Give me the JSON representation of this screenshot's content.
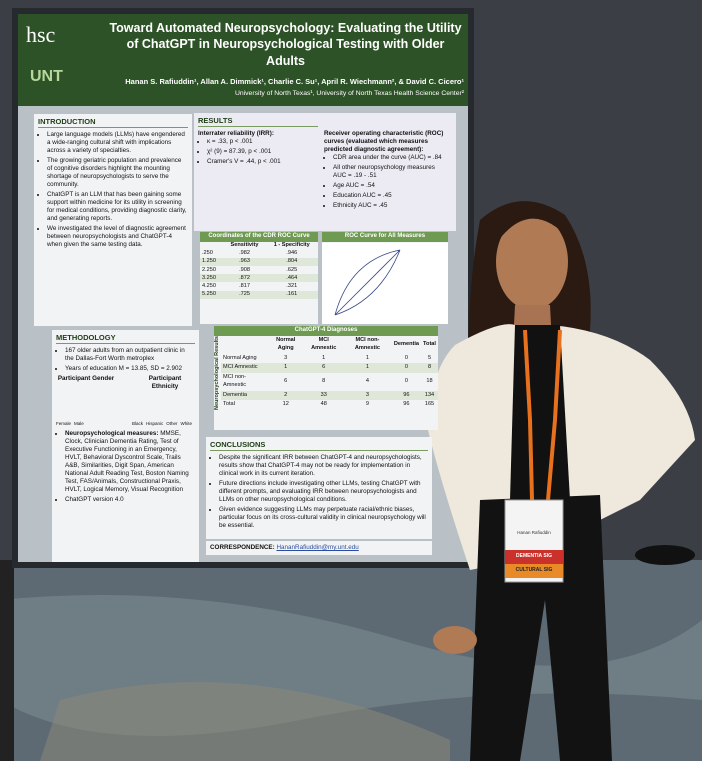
{
  "poster": {
    "logos": [
      "hsc",
      "UNT"
    ],
    "title": "Toward Automated Neuropsychology: Evaluating the Utility of ChatGPT in Neuropsychological Testing with Older Adults",
    "authors": "Hanan S. Rafiuddin¹, Allan A. Dimmick¹, Charlie C. Su¹, April R. Wiechmann², & David C. Cicero¹",
    "affiliations": "University of North Texas¹, University of North Texas Health Science Center²",
    "introduction": {
      "heading": "INTRODUCTION",
      "bullets": [
        "Large language models (LLMs) have engendered a wide-ranging cultural shift with implications across a variety of specialties.",
        "The growing geriatric population and prevalence of cognitive disorders highlight the mounting shortage of neuropsychologists to serve the community.",
        "ChatGPT is an LLM that has been gaining some support within medicine for its utility in screening for medical conditions, providing diagnostic clarity, and generating reports.",
        "We investigated the level of diagnostic agreement between neuropsychologists and ChatGPT-4 when given the same testing data."
      ]
    },
    "methodology": {
      "heading": "METHODOLOGY",
      "bullets": [
        "167 older adults from an outpatient clinic in the Dallas-Fort Worth metroplex",
        "Years of education M = 13.85, SD = 2.902"
      ],
      "gender": {
        "title": "Participant Gender",
        "legend": [
          "Female",
          "Male"
        ]
      },
      "ethnicity": {
        "title": "Participant Ethnicity",
        "legend": [
          "Black",
          "Hispanic",
          "Other",
          "White"
        ]
      },
      "measures_label": "Neuropsychological measures:",
      "measures": "MMSE, Clock, Clinician Dementia Rating, Test of Executive Functioning in an Emergency, HVLT, Behavioral Dyscontrol Scale, Trails A&B, Similarities, Digit Span, American National Adult Reading Test, Boston Naming Test, FAS/Animals, Constructional Praxis, HVLT, Logical Memory, Visual Recognition",
      "version": "ChatGPT version 4.0"
    },
    "results": {
      "heading": "RESULTS",
      "irr_heading": "Interrater reliability (IRR):",
      "irr": [
        "κ = .33, p < .001",
        "χ² (9) = 87.39, p < .001",
        "Cramer's V = .44, p < .001"
      ],
      "roc_heading": "Receiver operating characteristic (ROC) curves (evaluated which measures predicted diagnostic agreement):",
      "roc": [
        "CDR area under the curve (AUC) = .84",
        "All other neuropsychology measures AUC = .19 - .51",
        "Age AUC = .54",
        "Education AUC = .45",
        "Ethnicity AUC = .45"
      ]
    },
    "roc_table": {
      "title": "Coordinates of the CDR ROC Curve",
      "header": [
        "Sensitivity",
        "1 - Specificity"
      ],
      "rows": [
        [
          ".250",
          ".982",
          ".946"
        ],
        [
          "1.250",
          ".963",
          ".804"
        ],
        [
          "2.250",
          ".908",
          ".625"
        ],
        [
          "3.250",
          ".872",
          ".464"
        ],
        [
          "4.250",
          ".817",
          ".321"
        ],
        [
          "5.250",
          ".725",
          ".161"
        ]
      ]
    },
    "roc_chart_title": "ROC Curve for All Measures",
    "diagnoses_table": {
      "title": "ChatGPT-4 Diagnoses",
      "row_axis": "Neuropsychological Results",
      "header": [
        "Normal Aging",
        "MCI Amnestic",
        "MCI non-Amnestic",
        "Dementia",
        "Total"
      ],
      "rows": [
        [
          "Normal Aging",
          "3",
          "1",
          "1",
          "0",
          "5"
        ],
        [
          "MCI Amnestic",
          "1",
          "6",
          "1",
          "0",
          "8"
        ],
        [
          "MCI non-Amnestic",
          "6",
          "8",
          "4",
          "0",
          "18"
        ],
        [
          "Dementia",
          "2",
          "33",
          "3",
          "96",
          "134"
        ],
        [
          "Total",
          "12",
          "48",
          "9",
          "96",
          "165"
        ]
      ]
    },
    "conclusions": {
      "heading": "CONCLUSIONS",
      "bullets": [
        "Despite the significant IRR between ChatGPT-4 and neuropsychologists, results show that ChatGPT-4 may not be ready for implementation in clinical work in its current iteration.",
        "Future directions include investigating other LLMs, testing ChatGPT with different prompts, and evaluating IRR between neuropsychologists and LLMs on other neuropsychological conditions.",
        "Given evidence suggesting LLMs may perpetuate racial/ethnic biases, particular focus on its cross-cultural validity in clinical neuropsychology will be essential."
      ]
    },
    "correspondence": {
      "label": "CORRESPONDENCE:",
      "email": "HananRafiuddin@my.unt.edu"
    }
  },
  "badge": {
    "name": "Hanan Rafiuddin",
    "ribbons": [
      "DEMENTIA SIG",
      "CULTURAL SIG"
    ]
  }
}
